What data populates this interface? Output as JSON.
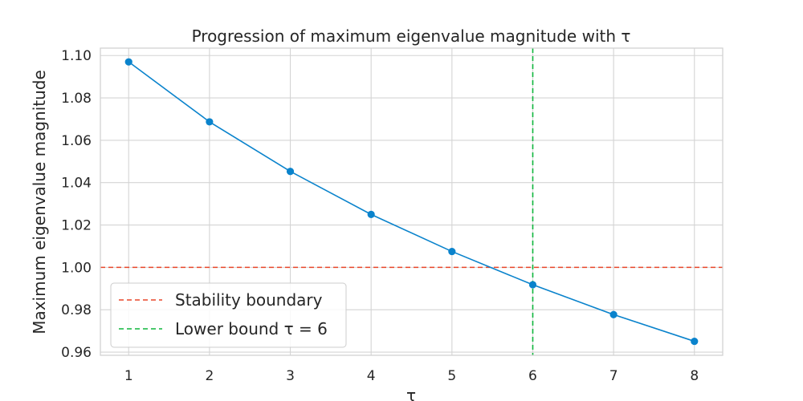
{
  "chart_data": {
    "type": "line",
    "title": "Progression of maximum eigenvalue magnitude with τ",
    "xlabel": "τ",
    "ylabel": "Maximum eigenvalue magnitude",
    "x": [
      1,
      2,
      3,
      4,
      5,
      6,
      7,
      8
    ],
    "xlim": [
      0.65,
      8.35
    ],
    "ylim": [
      0.9585,
      1.1035
    ],
    "xticks": [
      1,
      2,
      3,
      4,
      5,
      6,
      7,
      8
    ],
    "yticks": [
      0.96,
      0.98,
      1.0,
      1.02,
      1.04,
      1.06,
      1.08,
      1.1
    ],
    "ytick_labels": [
      "0.96",
      "0.98",
      "1.00",
      "1.02",
      "1.04",
      "1.06",
      "1.08",
      "1.10"
    ],
    "grid": true,
    "series": [
      {
        "values": [
          1.097,
          1.0687,
          1.0453,
          1.025,
          1.0075,
          0.9918,
          0.9777,
          0.9651
        ],
        "color": "#0a83cc",
        "marker": "circle"
      }
    ],
    "reference_lines": [
      {
        "orientation": "horizontal",
        "value": 1.0,
        "label": "Stability boundary",
        "color": "#e8462a",
        "style": "dashed"
      },
      {
        "orientation": "vertical",
        "value": 6,
        "label": "Lower bound τ = 6",
        "color": "#0fb63c",
        "style": "dashed"
      }
    ],
    "legend": {
      "position": "lower-left"
    }
  }
}
